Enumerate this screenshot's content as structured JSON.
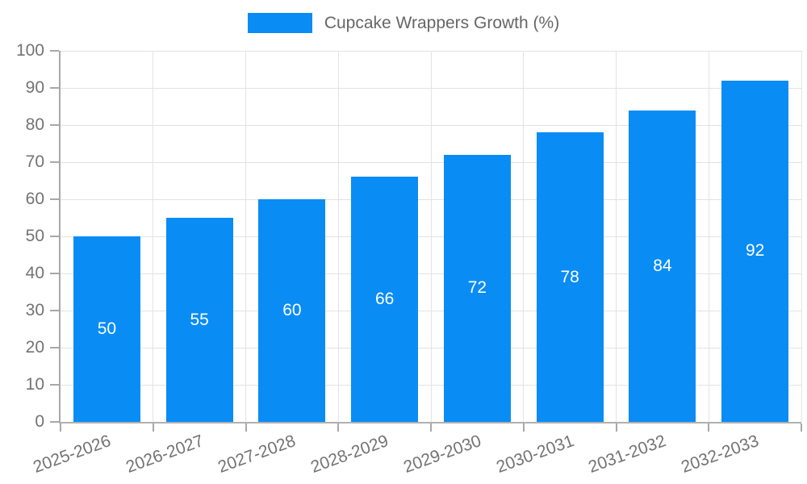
{
  "chart_data": {
    "type": "bar",
    "title": "Cupcake Wrappers Growth (%)",
    "legend_label": "Cupcake Wrappers Growth (%)",
    "categories": [
      "2025-2026",
      "2026-2027",
      "2027-2028",
      "2028-2029",
      "2029-2030",
      "2030-2031",
      "2031-2032",
      "2032-2033"
    ],
    "values": [
      50,
      55,
      60,
      66,
      72,
      78,
      84,
      92
    ],
    "data_labels": [
      "50",
      "55",
      "60",
      "66",
      "72",
      "78",
      "84",
      "92"
    ],
    "xlabel": "",
    "ylabel": "",
    "ylim": [
      0,
      100
    ],
    "yticks": [
      0,
      10,
      20,
      30,
      40,
      50,
      60,
      70,
      80,
      90,
      100
    ],
    "grid": true,
    "legend_position": "top",
    "colors": {
      "bar": "#0a8cf5",
      "bar_value_text": "#ffffff",
      "axis": "#a8a8a8",
      "gridline": "#e3e3e3",
      "tick_text": "#737373",
      "legend_text": "#666666"
    }
  }
}
